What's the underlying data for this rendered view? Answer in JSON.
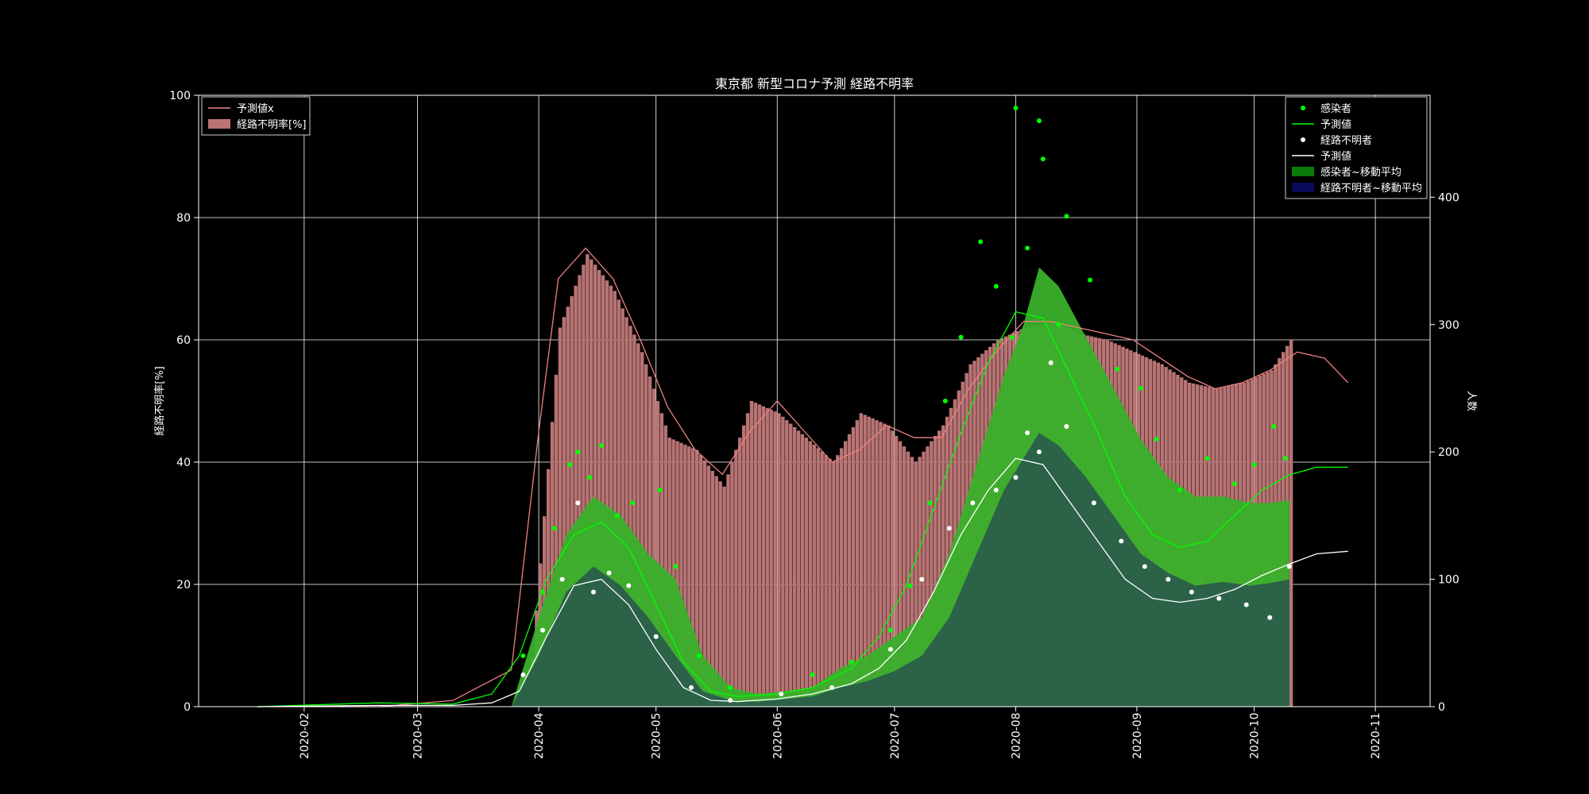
{
  "chart_data": {
    "type": "bar",
    "title": "東京都 新型コロナ予測 経路不明率",
    "ylabel_left": "経路不明率[%]",
    "ylabel_right": "人数",
    "xlim": [
      "2020-01-05",
      "2020-11-15"
    ],
    "ylim_left": [
      0,
      100
    ],
    "ylim_right": [
      0,
      480
    ],
    "grid": true,
    "x_ticks": [
      "2020-02",
      "2020-03",
      "2020-04",
      "2020-05",
      "2020-06",
      "2020-07",
      "2020-08",
      "2020-09",
      "2020-10",
      "2020-11"
    ],
    "y_ticks_left": [
      "0",
      "20",
      "40",
      "60",
      "80",
      "100"
    ],
    "y_ticks_right": [
      "0",
      "100",
      "200",
      "300",
      "400"
    ],
    "legend_left": [
      {
        "label": "予測値x",
        "kind": "line",
        "color": "#f08080"
      },
      {
        "label": "経路不明率[%]",
        "kind": "patch",
        "color": "#b87373"
      }
    ],
    "legend_left_position": "upper-left",
    "legend_right": [
      {
        "label": "感染者",
        "kind": "dot",
        "color": "#00ff00"
      },
      {
        "label": "予測値",
        "kind": "line",
        "color": "#00ff00"
      },
      {
        "label": "経路不明者",
        "kind": "dot",
        "color": "#ffffff"
      },
      {
        "label": "予測値",
        "kind": "line",
        "color": "#ffffff"
      },
      {
        "label": "感染者~移動平均",
        "kind": "patch",
        "color": "#0a7a0a"
      },
      {
        "label": "経路不明者~移動平均",
        "kind": "patch",
        "color": "#0a0a5a"
      }
    ],
    "legend_right_position": "upper-right",
    "colors": {
      "rate_bar": "#b87373",
      "rate_line": "#f08080",
      "infected": "#00ff00",
      "unknown": "#ffffff",
      "infected_ma": "#39b02a",
      "infected_ma_peak": "#008000",
      "unknown_ma": "#2a5e4a"
    },
    "rate_pct_weekly": {
      "dates": [
        "2020-03-30",
        "2020-04-06",
        "2020-04-13",
        "2020-04-20",
        "2020-04-27",
        "2020-05-04",
        "2020-05-11",
        "2020-05-18",
        "2020-05-25",
        "2020-06-01",
        "2020-06-08",
        "2020-06-15",
        "2020-06-22",
        "2020-06-29",
        "2020-07-06",
        "2020-07-13",
        "2020-07-20",
        "2020-07-27",
        "2020-08-03",
        "2020-08-10",
        "2020-08-17",
        "2020-08-24",
        "2020-08-31",
        "2020-09-07",
        "2020-09-14",
        "2020-09-21",
        "2020-09-28",
        "2020-10-05",
        "2020-10-10"
      ],
      "values": [
        8,
        62,
        74,
        68,
        58,
        44,
        42,
        36,
        50,
        48,
        44,
        40,
        48,
        46,
        40,
        46,
        56,
        60,
        62,
        63,
        61,
        60,
        58,
        56,
        53,
        52,
        53,
        55,
        60
      ]
    },
    "rate_forecast_pct": {
      "dates": [
        "2020-01-20",
        "2020-02-20",
        "2020-03-10",
        "2020-03-25",
        "2020-04-01",
        "2020-04-06",
        "2020-04-13",
        "2020-04-20",
        "2020-04-27",
        "2020-05-04",
        "2020-05-11",
        "2020-05-18",
        "2020-05-25",
        "2020-06-01",
        "2020-06-08",
        "2020-06-15",
        "2020-06-22",
        "2020-06-29",
        "2020-07-06",
        "2020-07-13",
        "2020-07-20",
        "2020-07-27",
        "2020-08-03",
        "2020-08-10",
        "2020-08-17",
        "2020-08-24",
        "2020-08-31",
        "2020-09-07",
        "2020-09-14",
        "2020-09-21",
        "2020-09-28",
        "2020-10-05",
        "2020-10-12",
        "2020-10-19",
        "2020-10-25"
      ],
      "values": [
        0,
        0,
        1,
        6,
        45,
        70,
        75,
        70,
        60,
        49,
        42,
        38,
        45,
        50,
        45,
        40,
        42,
        46,
        44,
        44,
        52,
        58,
        63,
        63,
        62,
        61,
        60,
        57,
        54,
        52,
        53,
        55,
        58,
        57,
        53
      ]
    },
    "infected_forecast": {
      "dates": [
        "2020-01-20",
        "2020-02-20",
        "2020-03-10",
        "2020-03-20",
        "2020-03-27",
        "2020-04-03",
        "2020-04-10",
        "2020-04-17",
        "2020-04-24",
        "2020-05-01",
        "2020-05-08",
        "2020-05-15",
        "2020-05-22",
        "2020-06-01",
        "2020-06-10",
        "2020-06-20",
        "2020-06-27",
        "2020-07-04",
        "2020-07-11",
        "2020-07-18",
        "2020-07-25",
        "2020-08-01",
        "2020-08-08",
        "2020-08-15",
        "2020-08-22",
        "2020-08-29",
        "2020-09-05",
        "2020-09-12",
        "2020-09-19",
        "2020-09-26",
        "2020-10-03",
        "2020-10-10",
        "2020-10-17",
        "2020-10-25"
      ],
      "values": [
        0,
        3,
        2,
        10,
        40,
        100,
        135,
        145,
        125,
        80,
        35,
        12,
        8,
        10,
        15,
        30,
        55,
        95,
        155,
        215,
        270,
        310,
        305,
        260,
        215,
        165,
        135,
        125,
        130,
        150,
        170,
        182,
        188,
        188
      ]
    },
    "unknown_forecast": {
      "dates": [
        "2020-01-20",
        "2020-02-20",
        "2020-03-10",
        "2020-03-20",
        "2020-03-27",
        "2020-04-03",
        "2020-04-10",
        "2020-04-17",
        "2020-04-24",
        "2020-05-01",
        "2020-05-08",
        "2020-05-15",
        "2020-05-22",
        "2020-06-01",
        "2020-06-10",
        "2020-06-20",
        "2020-06-27",
        "2020-07-04",
        "2020-07-11",
        "2020-07-18",
        "2020-07-25",
        "2020-08-01",
        "2020-08-08",
        "2020-08-15",
        "2020-08-22",
        "2020-08-29",
        "2020-09-05",
        "2020-09-12",
        "2020-09-19",
        "2020-09-26",
        "2020-10-03",
        "2020-10-10",
        "2020-10-17",
        "2020-10-25"
      ],
      "values": [
        0,
        1,
        1,
        3,
        12,
        55,
        95,
        100,
        80,
        45,
        15,
        5,
        4,
        6,
        10,
        18,
        30,
        52,
        90,
        135,
        170,
        195,
        190,
        160,
        130,
        100,
        85,
        82,
        85,
        92,
        103,
        112,
        120,
        122
      ]
    },
    "infected_ma": {
      "dates": [
        "2020-03-25",
        "2020-04-01",
        "2020-04-08",
        "2020-04-15",
        "2020-04-22",
        "2020-04-29",
        "2020-05-06",
        "2020-05-13",
        "2020-05-20",
        "2020-05-27",
        "2020-06-03",
        "2020-06-10",
        "2020-06-17",
        "2020-06-24",
        "2020-07-01",
        "2020-07-08",
        "2020-07-15",
        "2020-07-22",
        "2020-07-29",
        "2020-08-03",
        "2020-08-07",
        "2020-08-12",
        "2020-08-19",
        "2020-08-26",
        "2020-09-02",
        "2020-09-09",
        "2020-09-16",
        "2020-09-23",
        "2020-09-30",
        "2020-10-05",
        "2020-10-10"
      ],
      "values": [
        0,
        70,
        135,
        165,
        150,
        120,
        100,
        40,
        15,
        10,
        12,
        15,
        30,
        40,
        55,
        70,
        120,
        190,
        260,
        300,
        345,
        330,
        290,
        250,
        210,
        180,
        165,
        165,
        160,
        160,
        162
      ]
    },
    "unknown_ma": {
      "dates": [
        "2020-03-25",
        "2020-04-01",
        "2020-04-08",
        "2020-04-15",
        "2020-04-22",
        "2020-04-29",
        "2020-05-06",
        "2020-05-13",
        "2020-05-20",
        "2020-05-27",
        "2020-06-03",
        "2020-06-10",
        "2020-06-17",
        "2020-06-24",
        "2020-07-01",
        "2020-07-08",
        "2020-07-15",
        "2020-07-22",
        "2020-07-29",
        "2020-08-03",
        "2020-08-07",
        "2020-08-12",
        "2020-08-19",
        "2020-08-26",
        "2020-09-02",
        "2020-09-09",
        "2020-09-16",
        "2020-09-23",
        "2020-09-30",
        "2020-10-05",
        "2020-10-10"
      ],
      "values": [
        0,
        40,
        90,
        110,
        95,
        70,
        40,
        12,
        5,
        4,
        6,
        8,
        15,
        20,
        28,
        40,
        70,
        120,
        170,
        195,
        215,
        205,
        180,
        150,
        120,
        105,
        95,
        98,
        95,
        97,
        100
      ]
    },
    "infected_points": {
      "dates": [
        "2020-03-28",
        "2020-04-02",
        "2020-04-05",
        "2020-04-09",
        "2020-04-11",
        "2020-04-14",
        "2020-04-17",
        "2020-04-21",
        "2020-04-25",
        "2020-05-02",
        "2020-05-06",
        "2020-05-12",
        "2020-05-20",
        "2020-06-02",
        "2020-06-10",
        "2020-06-20",
        "2020-06-30",
        "2020-07-05",
        "2020-07-10",
        "2020-07-14",
        "2020-07-18",
        "2020-07-23",
        "2020-07-27",
        "2020-07-31",
        "2020-08-01",
        "2020-08-04",
        "2020-08-07",
        "2020-08-08",
        "2020-08-12",
        "2020-08-14",
        "2020-08-20",
        "2020-08-27",
        "2020-09-02",
        "2020-09-06",
        "2020-09-12",
        "2020-09-19",
        "2020-09-26",
        "2020-10-01",
        "2020-10-06",
        "2020-10-09"
      ],
      "values": [
        40,
        90,
        140,
        190,
        200,
        180,
        205,
        150,
        160,
        170,
        110,
        40,
        15,
        10,
        25,
        35,
        60,
        95,
        160,
        240,
        290,
        365,
        330,
        290,
        470,
        360,
        460,
        430,
        300,
        385,
        335,
        265,
        250,
        210,
        170,
        195,
        175,
        190,
        220,
        195
      ]
    },
    "unknown_points": {
      "dates": [
        "2020-03-28",
        "2020-04-02",
        "2020-04-07",
        "2020-04-11",
        "2020-04-15",
        "2020-04-19",
        "2020-04-24",
        "2020-05-01",
        "2020-05-10",
        "2020-05-20",
        "2020-06-02",
        "2020-06-15",
        "2020-06-30",
        "2020-07-08",
        "2020-07-15",
        "2020-07-21",
        "2020-07-27",
        "2020-08-01",
        "2020-08-04",
        "2020-08-07",
        "2020-08-10",
        "2020-08-14",
        "2020-08-21",
        "2020-08-28",
        "2020-09-03",
        "2020-09-09",
        "2020-09-15",
        "2020-09-22",
        "2020-09-29",
        "2020-10-05",
        "2020-10-10"
      ],
      "values": [
        25,
        60,
        100,
        160,
        90,
        105,
        95,
        55,
        15,
        5,
        10,
        15,
        45,
        100,
        140,
        160,
        170,
        180,
        215,
        200,
        270,
        220,
        160,
        130,
        110,
        100,
        90,
        85,
        80,
        70,
        110
      ]
    }
  }
}
